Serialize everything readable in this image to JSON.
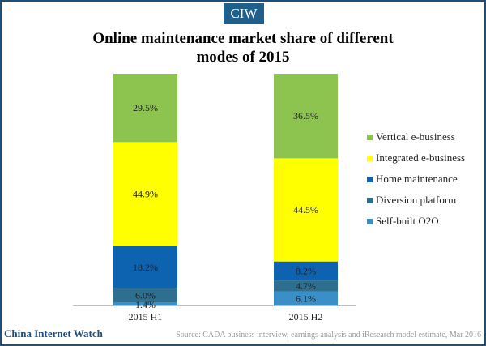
{
  "badge": "CIW",
  "title_lines": [
    "Online maintenance market share of different",
    "modes of 2015"
  ],
  "chart_data": {
    "type": "bar",
    "stacked": true,
    "title": "Online maintenance market share of different modes of 2015",
    "categories": [
      "2015 H1",
      "2015 H2"
    ],
    "series": [
      {
        "name": "Self-built O2O",
        "color": "#3a8fc7",
        "values": [
          1.4,
          6.1
        ],
        "labels": [
          "1.4%",
          "6.1%"
        ]
      },
      {
        "name": "Diversion platform",
        "color": "#2e6e8f",
        "values": [
          6.0,
          4.7
        ],
        "labels": [
          "6.0%",
          "4.7%"
        ]
      },
      {
        "name": "Home maintenance",
        "color": "#0e63b0",
        "values": [
          18.2,
          8.2
        ],
        "labels": [
          "18.2%",
          "8.2%"
        ]
      },
      {
        "name": "Integrated e-business",
        "color": "#ffff00",
        "values": [
          44.9,
          44.5
        ],
        "labels": [
          "44.9%",
          "44.5%"
        ]
      },
      {
        "name": "Vertical e-business",
        "color": "#8dc44f",
        "values": [
          29.5,
          36.5
        ],
        "labels": [
          "29.5%",
          "36.5%"
        ]
      }
    ],
    "legend": [
      "Vertical e-business",
      "Integrated e-business",
      "Home maintenance",
      "Diversion platform",
      "Self-built O2O"
    ],
    "ylim": [
      0,
      100
    ],
    "xlabel": "",
    "ylabel": ""
  },
  "footer": {
    "brand": "China Internet Watch",
    "source": "Source: CADA business interview, earnings analysis and iResearch model estimate, Mar 2016"
  }
}
